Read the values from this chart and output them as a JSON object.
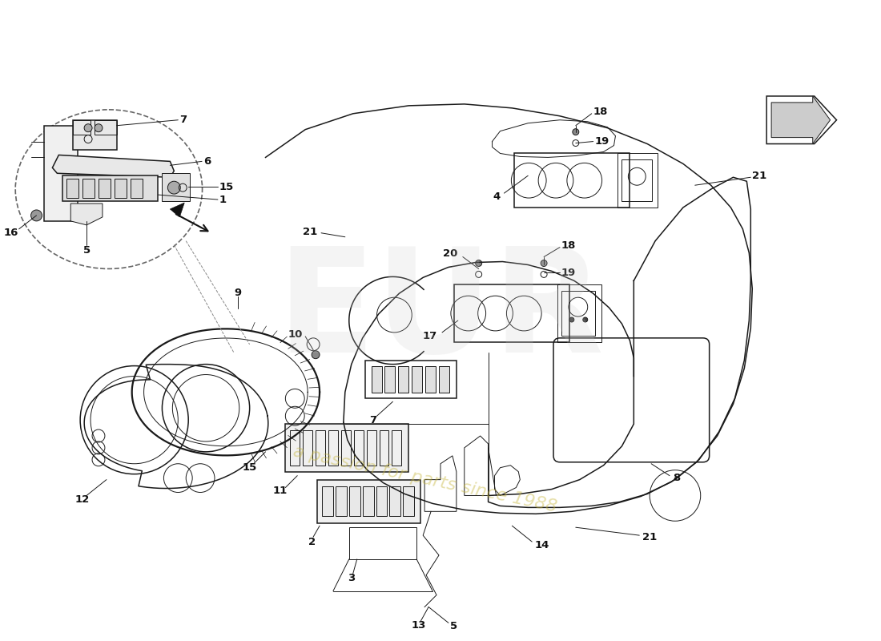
{
  "background_color": "#ffffff",
  "line_color": "#1a1a1a",
  "lw_thin": 0.7,
  "lw_med": 1.1,
  "lw_thick": 1.6,
  "watermark_color": "#c8b840",
  "watermark_alpha": 0.45,
  "logo_color": "#cccccc",
  "logo_alpha": 0.25
}
